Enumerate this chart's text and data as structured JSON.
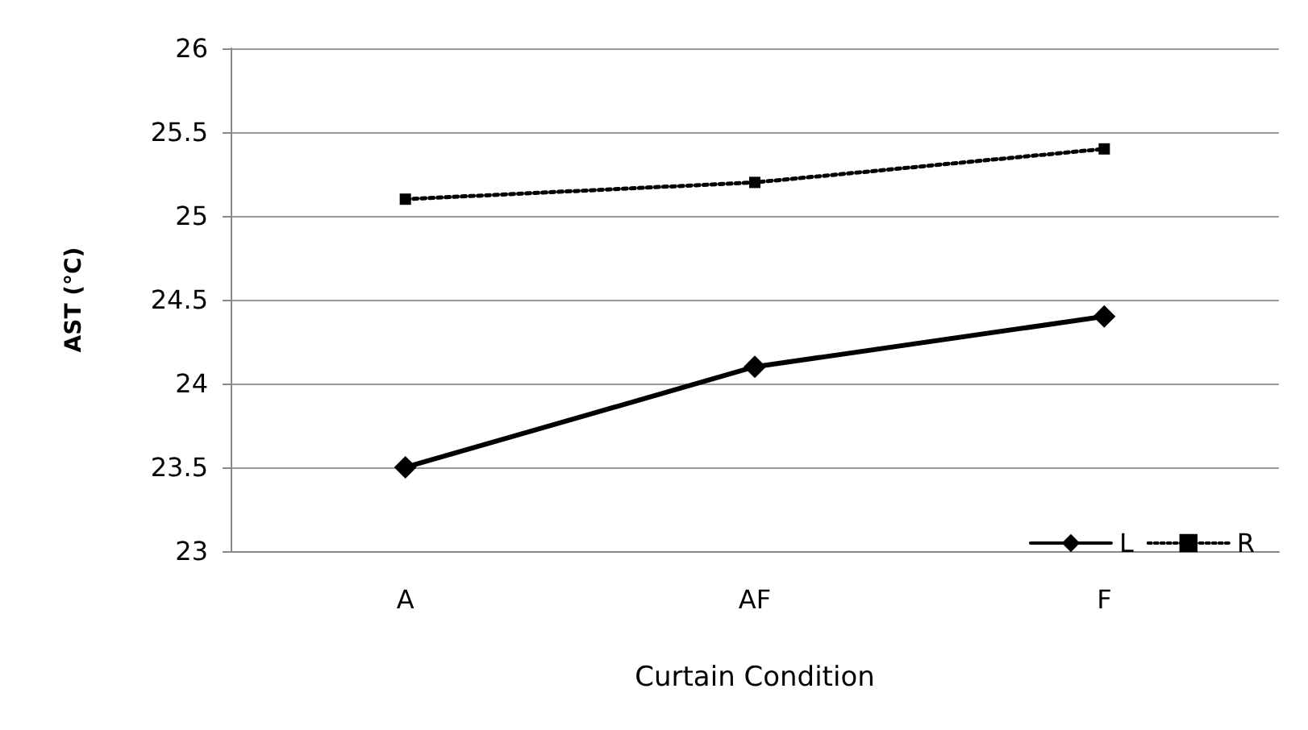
{
  "chart_data": {
    "type": "line",
    "xlabel": "Curtain Condition",
    "ylabel": "AST (°C)",
    "categories": [
      "A",
      "AF",
      "F"
    ],
    "series": [
      {
        "name": "L",
        "color": "#000000",
        "values": [
          23.5,
          24.1,
          24.4
        ],
        "marker": "diamond",
        "line_style": "solid"
      },
      {
        "name": "R",
        "color": "#000000",
        "values": [
          25.1,
          25.2,
          25.4
        ],
        "marker": "square",
        "line_style": "dotted"
      }
    ],
    "ylim": [
      23,
      26
    ],
    "yticks": [
      23,
      23.5,
      24,
      24.5,
      25,
      25.5,
      26
    ],
    "grid": "y",
    "legend": "bottom right"
  }
}
